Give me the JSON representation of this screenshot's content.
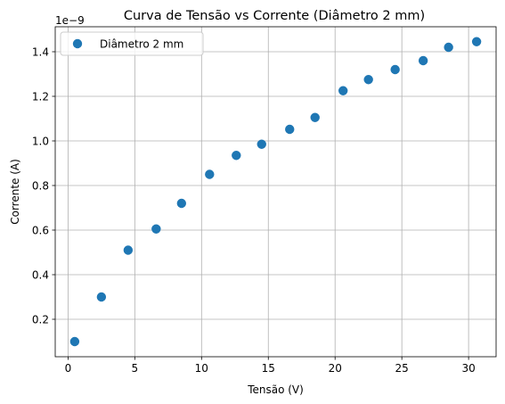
{
  "chart_data": {
    "type": "scatter",
    "title": "Curva de Tensão vs Corrente (Diâmetro 2 mm)",
    "xlabel": "Tensão (V)",
    "ylabel": "Corrente (A)",
    "y_scale_offset_text": "1e−9",
    "xlim": [
      -0.96,
      32.06
    ],
    "ylim": [
      3.2e-11,
      1.512e-09
    ],
    "x_ticks": [
      0,
      5,
      10,
      15,
      20,
      25,
      30
    ],
    "x_tick_labels": [
      "0",
      "5",
      "10",
      "15",
      "20",
      "25",
      "30"
    ],
    "y_ticks": [
      2e-10,
      4e-10,
      6e-10,
      8e-10,
      1e-09,
      1.2e-09,
      1.4e-09
    ],
    "y_tick_labels": [
      "0.2",
      "0.4",
      "0.6",
      "0.8",
      "1.0",
      "1.2",
      "1.4"
    ],
    "grid": true,
    "legend_position": "top-left",
    "series": [
      {
        "name": "Diâmetro 2 mm",
        "color": "#1f77b4",
        "marker": "circle",
        "points": [
          {
            "x": 0.5,
            "y": 1e-10
          },
          {
            "x": 2.5,
            "y": 3e-10
          },
          {
            "x": 4.5,
            "y": 5.1e-10
          },
          {
            "x": 6.6,
            "y": 6.05e-10
          },
          {
            "x": 8.5,
            "y": 7.2e-10
          },
          {
            "x": 10.6,
            "y": 8.5e-10
          },
          {
            "x": 12.6,
            "y": 9.35e-10
          },
          {
            "x": 14.5,
            "y": 9.85e-10
          },
          {
            "x": 16.6,
            "y": 1.052e-09
          },
          {
            "x": 18.5,
            "y": 1.105e-09
          },
          {
            "x": 20.6,
            "y": 1.225e-09
          },
          {
            "x": 22.5,
            "y": 1.275e-09
          },
          {
            "x": 24.5,
            "y": 1.32e-09
          },
          {
            "x": 26.6,
            "y": 1.36e-09
          },
          {
            "x": 28.5,
            "y": 1.42e-09
          },
          {
            "x": 30.6,
            "y": 1.445e-09
          }
        ]
      }
    ]
  }
}
